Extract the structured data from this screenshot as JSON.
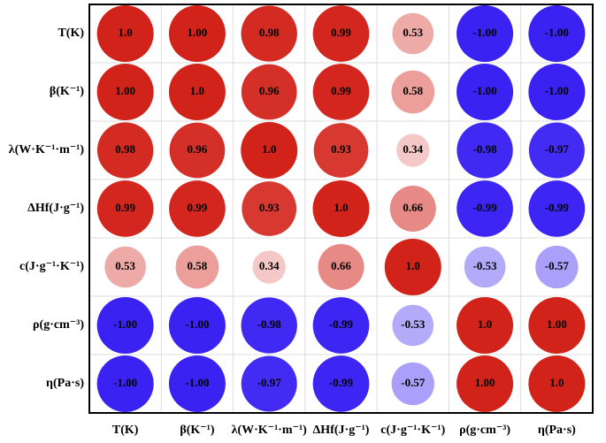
{
  "chart_data": {
    "type": "correlation",
    "categories": [
      "T(K)",
      "β(K⁻¹)",
      "λ(W·K⁻¹·m⁻¹)",
      "ΔHf(J·g⁻¹)",
      "c(J·g⁻¹·K⁻¹)",
      "ρ(g·cm⁻³)",
      "η(Pa·s)"
    ],
    "values": [
      [
        1,
        1,
        0.98,
        0.99,
        0.53,
        -1,
        -1
      ],
      [
        1,
        1,
        0.96,
        0.99,
        0.58,
        -1,
        -1
      ],
      [
        0.98,
        0.96,
        1,
        0.93,
        0.34,
        -0.98,
        -0.97
      ],
      [
        0.99,
        0.99,
        0.93,
        1,
        0.66,
        -0.99,
        -0.99
      ],
      [
        0.53,
        0.58,
        0.34,
        0.66,
        1,
        -0.53,
        -0.57
      ],
      [
        -1,
        -1,
        -0.98,
        -0.99,
        -0.53,
        1,
        1
      ],
      [
        -1,
        -1,
        -0.97,
        -0.99,
        -0.57,
        1,
        1
      ]
    ],
    "value_labels": [
      [
        "1.0",
        "1.00",
        "0.98",
        "0.99",
        "0.53",
        "-1.00",
        "-1.00"
      ],
      [
        "1.00",
        "1.0",
        "0.96",
        "0.99",
        "0.58",
        "-1.00",
        "-1.00"
      ],
      [
        "0.98",
        "0.96",
        "1.0",
        "0.93",
        "0.34",
        "-0.98",
        "-0.97"
      ],
      [
        "0.99",
        "0.99",
        "0.93",
        "1.0",
        "0.66",
        "-0.99",
        "-0.99"
      ],
      [
        "0.53",
        "0.58",
        "0.34",
        "0.66",
        "1.0",
        "-0.53",
        "-0.57"
      ],
      [
        "-1.00",
        "-1.00",
        "-0.98",
        "-0.99",
        "-0.53",
        "1.0",
        "1.00"
      ],
      [
        "-1.00",
        "-1.00",
        "-0.97",
        "-0.99",
        "-0.57",
        "1.00",
        "1.0"
      ]
    ],
    "positive_color": "#d2231a",
    "negative_color": "#3a22f3"
  }
}
